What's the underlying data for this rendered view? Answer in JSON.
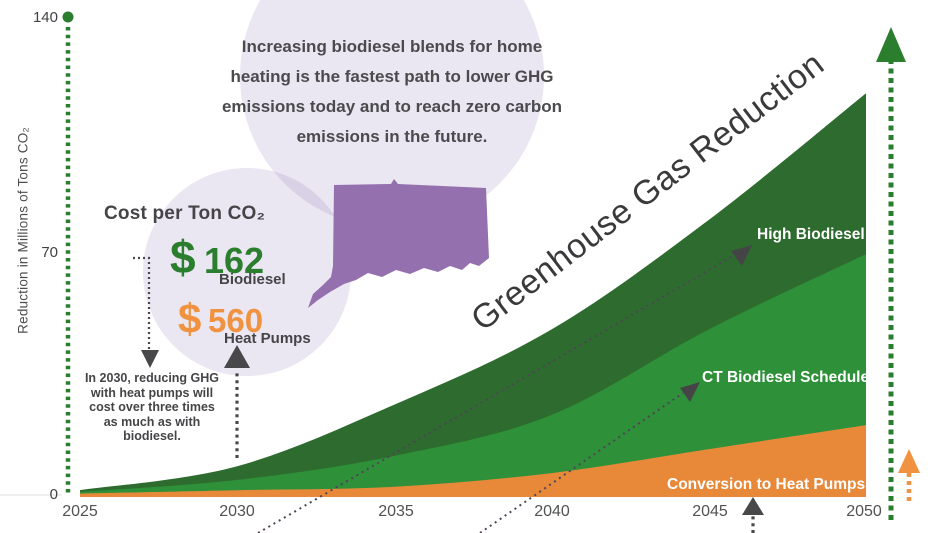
{
  "colors": {
    "dark_green": "#2D6B2E",
    "mid_green": "#2E9038",
    "orange": "#E8893A",
    "accent_green": "#2A7E2E",
    "accent_orange": "#F0923F",
    "purple": "#9471AE",
    "lavender": "rgba(150,132,190,0.20)",
    "ink": "#3A3A3C",
    "gray_text": "#4E4E50",
    "arrow_dark": "#48484B",
    "dotted_line": "#4F4457"
  },
  "bubble": {
    "lines": [
      "Increasing biodiesel blends for home",
      "heating is the fastest path to lower GHG",
      "emissions today and to reach zero carbon",
      "emissions in the future."
    ]
  },
  "cost": {
    "heading": "Cost per Ton CO₂",
    "currency": "$",
    "biodiesel_amount": "162",
    "biodiesel_label": "Biodiesel",
    "heat_pumps_amount": "560",
    "heat_pumps_label": "Heat Pumps"
  },
  "annotation": {
    "lines": [
      "In 2030, reducing GHG",
      "with heat pumps will",
      "cost over three times",
      "as much as with",
      "biodiesel."
    ]
  },
  "chart_data": {
    "type": "area",
    "title": "Greenhouse Gas Reduction",
    "xlabel": "",
    "ylabel": "Reduction in Millions of Tons CO₂",
    "x": [
      2025,
      2030,
      2035,
      2040,
      2045,
      2050
    ],
    "yticks": [
      "140",
      "70",
      "0"
    ],
    "ylim": [
      0,
      140
    ],
    "layered": true,
    "legend_position": "labels-on-areas",
    "grid": false,
    "series": [
      {
        "name": "High Biodiesel",
        "color_key": "dark_green",
        "top_values": [
          2,
          9,
          27,
          49,
          81,
          118
        ]
      },
      {
        "name": "CT Biodiesel Schedule",
        "color_key": "mid_green",
        "top_values": [
          1.5,
          5,
          12,
          24,
          49,
          71
        ]
      },
      {
        "name": "Conversion to Heat Pumps",
        "color_key": "orange",
        "top_values": [
          1,
          2,
          3,
          7,
          14,
          21
        ]
      }
    ]
  }
}
